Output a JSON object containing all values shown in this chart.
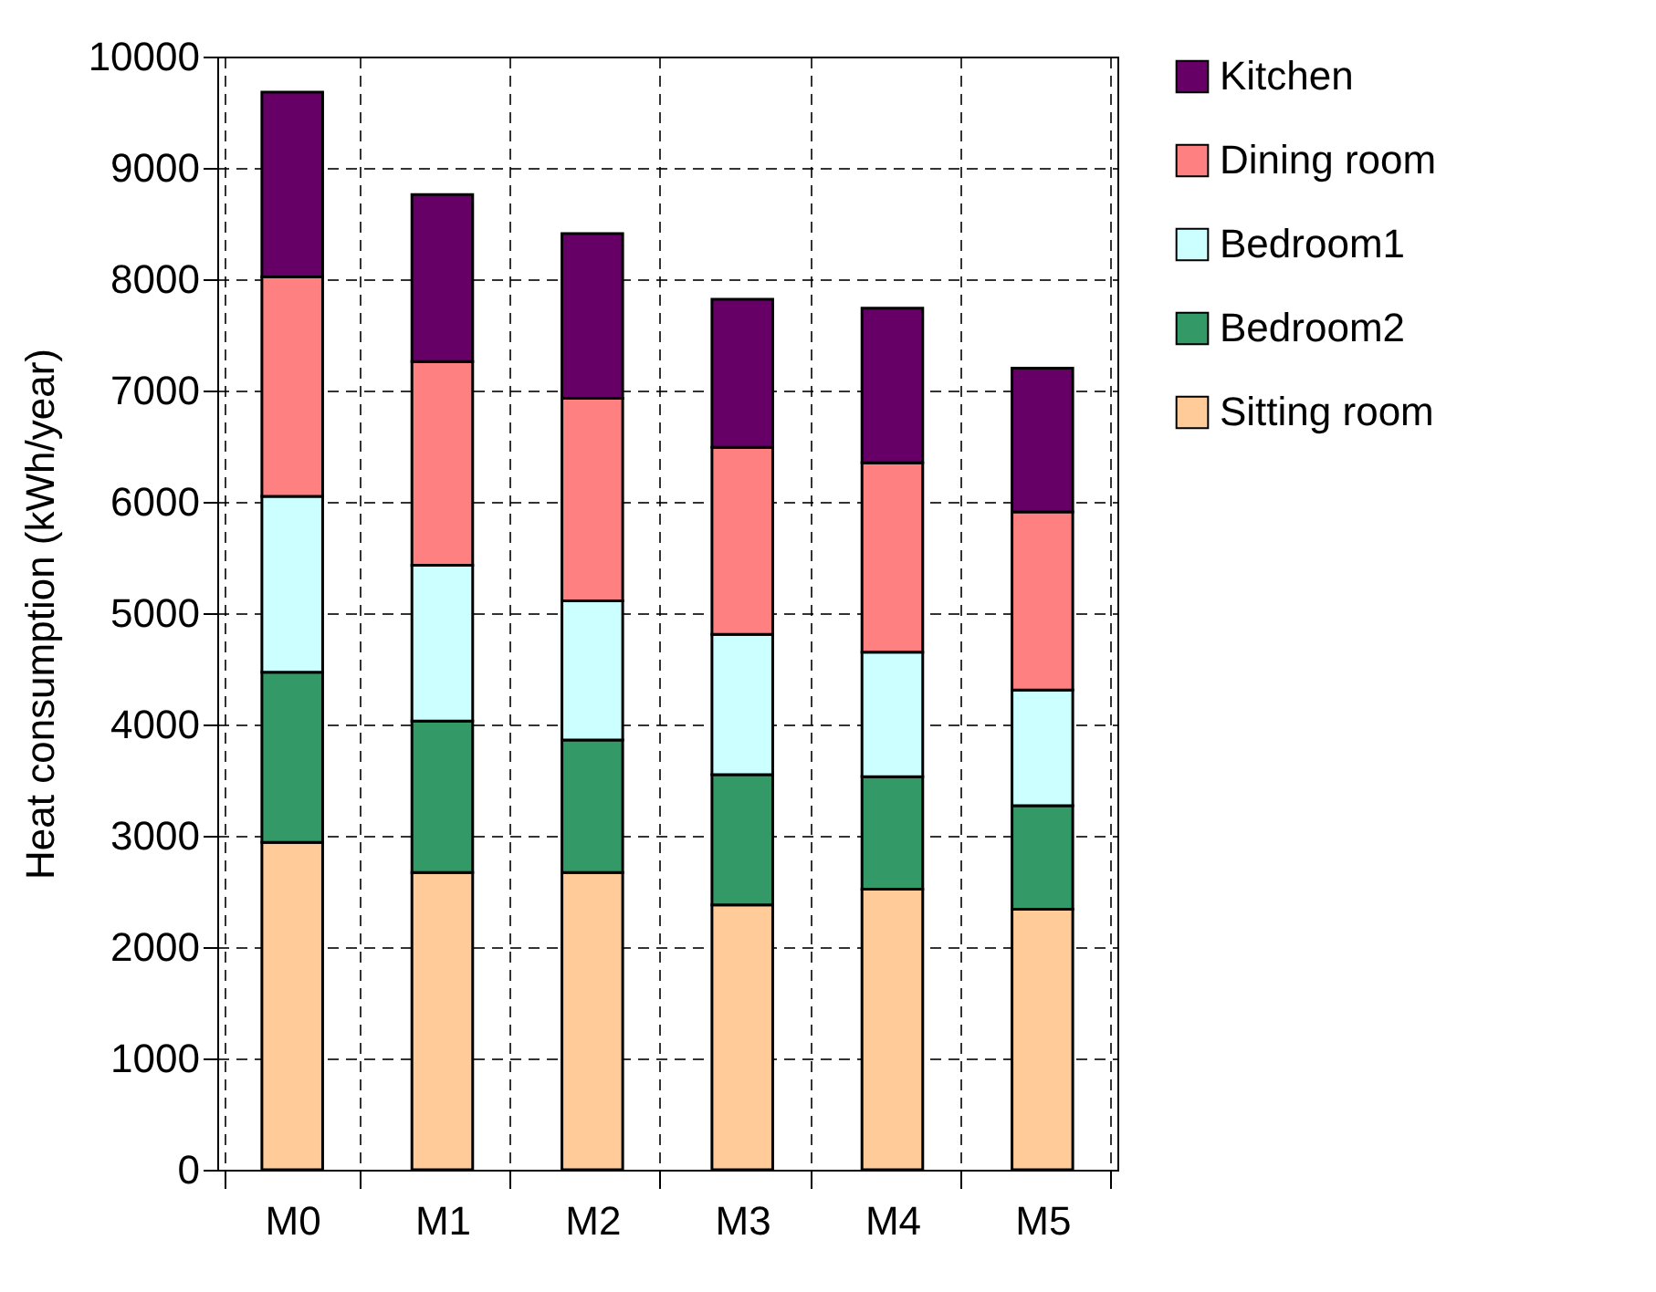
{
  "chart_data": {
    "type": "bar",
    "stacked": true,
    "ylabel": "Heat consumption (kWh/year)",
    "categories": [
      "M0",
      "M1",
      "M2",
      "M3",
      "M4",
      "M5"
    ],
    "series": [
      {
        "name": "Sitting room",
        "color": "#ffcc99",
        "values": [
          2940,
          2670,
          2670,
          2380,
          2520,
          2340
        ]
      },
      {
        "name": "Bedroom2",
        "color": "#339966",
        "values": [
          1530,
          1360,
          1190,
          1170,
          1010,
          930
        ]
      },
      {
        "name": "Bedroom1",
        "color": "#ccffff",
        "values": [
          1580,
          1400,
          1250,
          1260,
          1120,
          1040
        ]
      },
      {
        "name": "Dining room",
        "color": "#ff8080",
        "values": [
          1970,
          1830,
          1820,
          1680,
          1700,
          1600
        ]
      },
      {
        "name": "Kitchen",
        "color": "#660066",
        "values": [
          1660,
          1500,
          1480,
          1330,
          1390,
          1290
        ]
      }
    ],
    "ylim": [
      0,
      10000
    ],
    "yticks": [
      0,
      1000,
      2000,
      3000,
      4000,
      5000,
      6000,
      7000,
      8000,
      9000,
      10000
    ],
    "grid": true,
    "legend": "right"
  }
}
